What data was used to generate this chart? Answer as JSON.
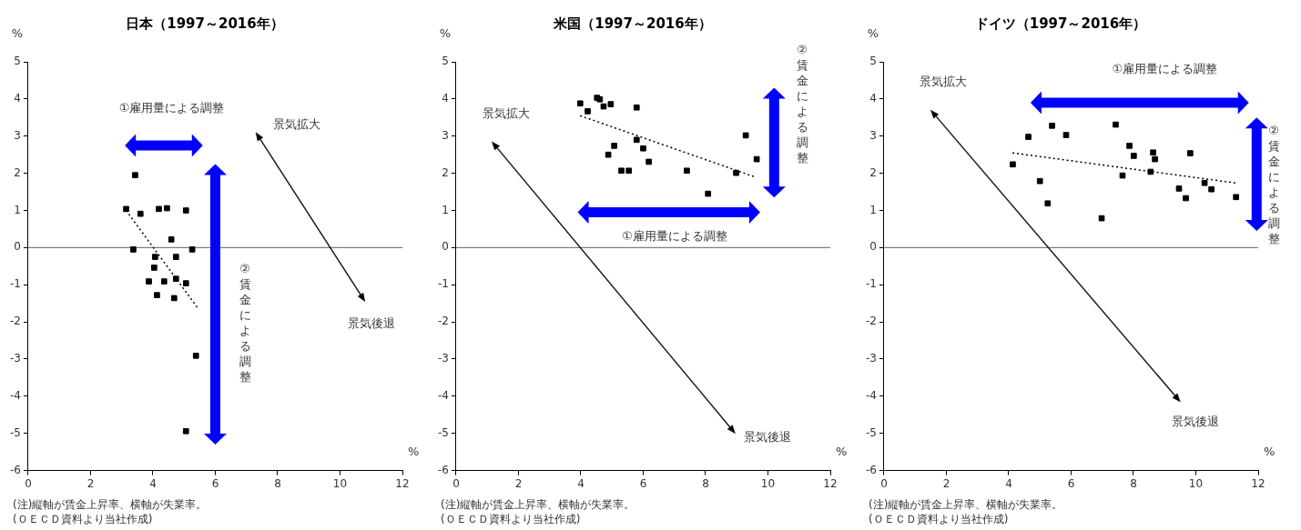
{
  "chart_data": [
    {
      "type": "scatter",
      "title": "日本（1997～2016年）",
      "xlabel": "%",
      "ylabel": "%",
      "xlim": [
        0,
        12
      ],
      "xticks": [
        0,
        2,
        4,
        6,
        8,
        10,
        12
      ],
      "ylim": [
        -6,
        5
      ],
      "yticks": [
        -6,
        -5,
        -4,
        -3,
        -2,
        -1,
        0,
        1,
        2,
        3,
        4,
        5
      ],
      "grid": false,
      "legend": false,
      "series": [
        {
          "type": "scatter",
          "color": "#000000",
          "marker": "square",
          "x": [
            3.14,
            3.43,
            3.6,
            3.37,
            4.19,
            4.45,
            5.06,
            4.59,
            5.26,
            4.07,
            4.74,
            4.04,
            3.87,
            4.36,
            4.74,
            5.06,
            4.13,
            4.68,
            5.38,
            5.06
          ],
          "values": [
            1.04,
            1.95,
            0.91,
            -0.05,
            1.04,
            1.06,
            1.0,
            0.22,
            -0.05,
            -0.25,
            -0.25,
            -0.54,
            -0.91,
            -0.91,
            -0.84,
            -0.96,
            -1.28,
            -1.36,
            -2.91,
            -4.94
          ]
        },
        {
          "type": "line",
          "color": "#000000",
          "marker": "none",
          "line_style": "dotted",
          "x": [
            3.14,
            5.44
          ],
          "values": [
            1.0,
            -1.63
          ]
        }
      ],
      "ref_lines": [
        {
          "axis": "y",
          "value": 0,
          "color": "#808080"
        }
      ],
      "annotations": [
        "①雇用量による調整",
        "景気拡大",
        "景気後退",
        "②賃金による調整",
        "(注)縦軸が賃金上昇率、横軸が失業率。",
        "(ＯＥＣＤ資料より当社作成)"
      ]
    },
    {
      "type": "scatter",
      "title": "米国（1997～2016年）",
      "xlabel": "%",
      "ylabel": "%",
      "xlim": [
        0,
        12
      ],
      "xticks": [
        0,
        2,
        4,
        6,
        8,
        10,
        12
      ],
      "ylim": [
        -6,
        5
      ],
      "yticks": [
        -6,
        -5,
        -4,
        -3,
        -2,
        -1,
        0,
        1,
        2,
        3,
        4,
        5
      ],
      "grid": false,
      "legend": false,
      "series": [
        {
          "type": "scatter",
          "color": "#000000",
          "marker": "square",
          "x": [
            3.98,
            4.22,
            4.52,
            4.61,
            4.73,
            4.96,
            5.79,
            5.07,
            4.88,
            5.79,
            6.0,
            6.18,
            5.3,
            5.54,
            7.4,
            8.08,
            8.98,
            9.29,
            9.64
          ],
          "values": [
            3.88,
            3.67,
            4.03,
            3.99,
            3.8,
            3.86,
            3.77,
            2.74,
            2.5,
            2.9,
            2.67,
            2.31,
            2.07,
            2.07,
            2.07,
            1.45,
            2.01,
            3.02,
            2.38
          ]
        },
        {
          "type": "line",
          "color": "#000000",
          "marker": "none",
          "line_style": "dotted",
          "x": [
            3.98,
            9.59
          ],
          "values": [
            3.55,
            1.9
          ]
        }
      ],
      "ref_lines": [
        {
          "axis": "y",
          "value": 0,
          "color": "#808080"
        }
      ],
      "annotations": [
        "①雇用量による調整",
        "景気拡大",
        "景気後退",
        "②賃金による調整",
        "(注)縦軸が賃金上昇率、横軸が失業率。",
        "(ＯＥＣＤ資料より当社作成)"
      ]
    },
    {
      "type": "scatter",
      "title": "ドイツ（1997～2016年）",
      "xlabel": "%",
      "ylabel": "%",
      "xlim": [
        0,
        12
      ],
      "xticks": [
        0,
        2,
        4,
        6,
        8,
        10,
        12
      ],
      "ylim": [
        -6,
        5
      ],
      "yticks": [
        -6,
        -5,
        -4,
        -3,
        -2,
        -1,
        0,
        1,
        2,
        3,
        4,
        5
      ],
      "grid": false,
      "legend": false,
      "series": [
        {
          "type": "scatter",
          "color": "#000000",
          "marker": "square",
          "x": [
            4.13,
            4.63,
            5.0,
            5.25,
            5.39,
            5.84,
            6.98,
            7.43,
            7.65,
            7.87,
            8.01,
            8.55,
            8.63,
            8.69,
            9.46,
            9.68,
            9.82,
            10.28,
            10.5,
            11.29
          ],
          "values": [
            2.24,
            2.98,
            1.79,
            1.19,
            3.28,
            3.03,
            0.79,
            3.31,
            1.94,
            2.74,
            2.47,
            2.04,
            2.56,
            2.38,
            1.59,
            1.33,
            2.54,
            1.74,
            1.57,
            1.36
          ]
        },
        {
          "type": "line",
          "color": "#000000",
          "marker": "none",
          "line_style": "dotted",
          "x": [
            4.12,
            11.27
          ],
          "values": [
            2.55,
            1.74
          ]
        }
      ],
      "ref_lines": [
        {
          "axis": "y",
          "value": 0,
          "color": "#808080"
        }
      ],
      "annotations": [
        "①雇用量による調整",
        "景気拡大",
        "景気後退",
        "②賃金による調整",
        "(注)縦軸が賃金上昇率、横軸が失業率。",
        "(ＯＥＣＤ資料より当社作成)"
      ]
    }
  ]
}
